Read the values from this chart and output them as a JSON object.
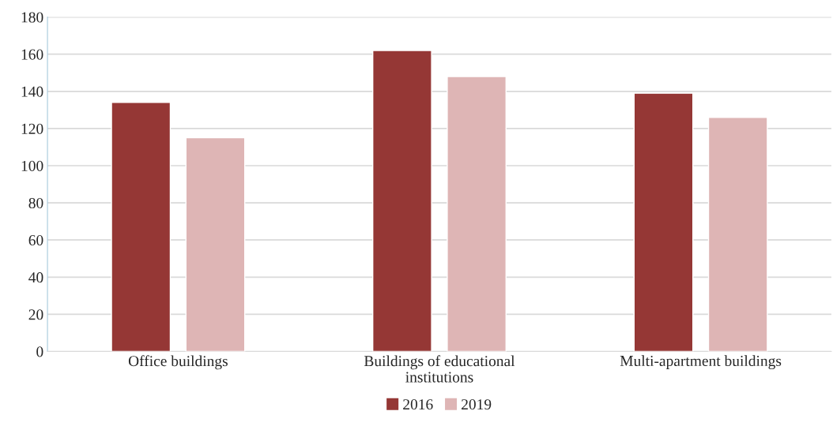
{
  "chart_data": {
    "type": "bar",
    "categories": [
      "Office buildings",
      "Buildings of educational\ninstitutions",
      "Multi-apartment buildings"
    ],
    "series": [
      {
        "name": "2016",
        "color": "#953735",
        "values": [
          134,
          162,
          139
        ]
      },
      {
        "name": "2019",
        "color": "#deb5b5",
        "values": [
          115,
          148,
          126
        ]
      }
    ],
    "ylim": [
      0,
      180
    ],
    "yticks": [
      0,
      20,
      40,
      60,
      80,
      100,
      120,
      140,
      160,
      180
    ],
    "grid": "y",
    "legend": "bottom"
  }
}
